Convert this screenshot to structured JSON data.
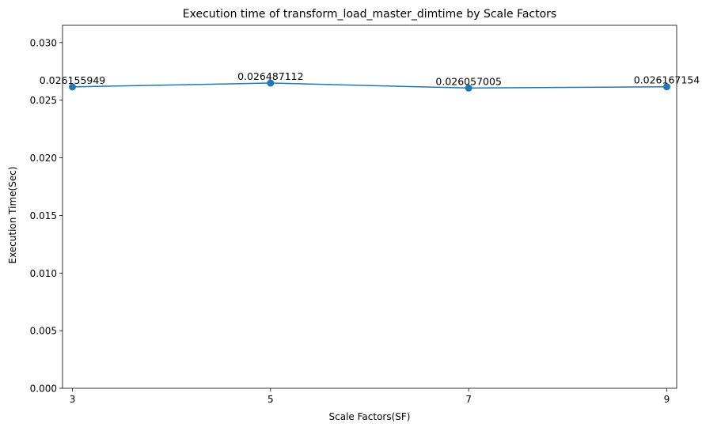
{
  "chart_data": {
    "type": "line",
    "title": "Execution time of transform_load_master_dimtime by Scale Factors",
    "xlabel": "Scale Factors(SF)",
    "ylabel": "Execution Time(Sec)",
    "x": [
      3,
      5,
      7,
      9
    ],
    "x_tick_labels": [
      "3",
      "5",
      "7",
      "9"
    ],
    "xlim": [
      2.9,
      9.1
    ],
    "ylim": [
      0,
      0.0315
    ],
    "y_ticks": [
      0.0,
      0.005,
      0.01,
      0.015,
      0.02,
      0.025,
      0.03
    ],
    "y_tick_labels": [
      "0.000",
      "0.005",
      "0.010",
      "0.015",
      "0.020",
      "0.025",
      "0.030"
    ],
    "series": [
      {
        "values": [
          0.026155949,
          0.026487112,
          0.026057005,
          0.026167154
        ],
        "data_labels": [
          "0.026155949",
          "0.026487112",
          "0.026057005",
          "0.026167154"
        ],
        "color": "#1f77b4",
        "marker": "circle"
      }
    ],
    "grid": false,
    "legend": "none"
  }
}
